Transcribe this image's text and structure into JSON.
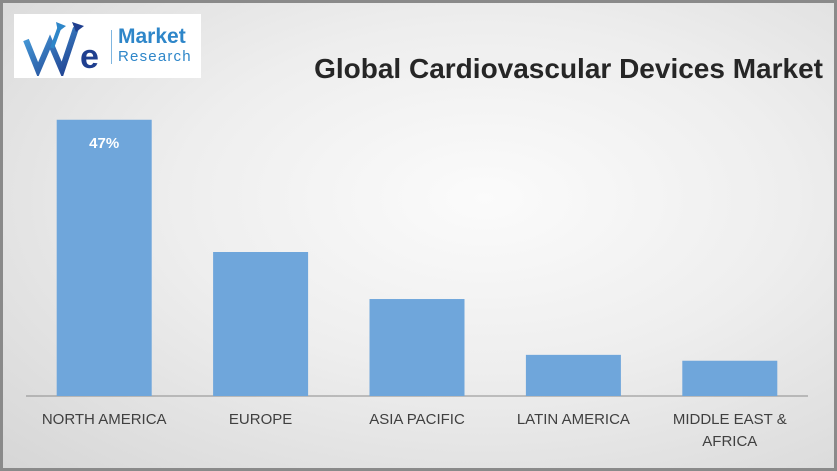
{
  "logo": {
    "line1": "Market",
    "line2": "Research",
    "color": "#2e86c9"
  },
  "chart_data": {
    "type": "bar",
    "title": "Global Cardiovascular Devices Market",
    "categories": [
      "NORTH AMERICA",
      "EUROPE",
      "ASIA PACIFIC",
      "LATIN AMERICA",
      "MIDDLE EAST & AFRICA"
    ],
    "values": [
      47,
      24.5,
      16.5,
      7,
      6
    ],
    "data_labels": [
      "47%",
      "",
      "",
      "",
      ""
    ],
    "ylim": [
      0,
      49
    ],
    "grid": false,
    "legend": "none",
    "bar_color": "#6fa6db",
    "label_color": "#ffffff"
  }
}
